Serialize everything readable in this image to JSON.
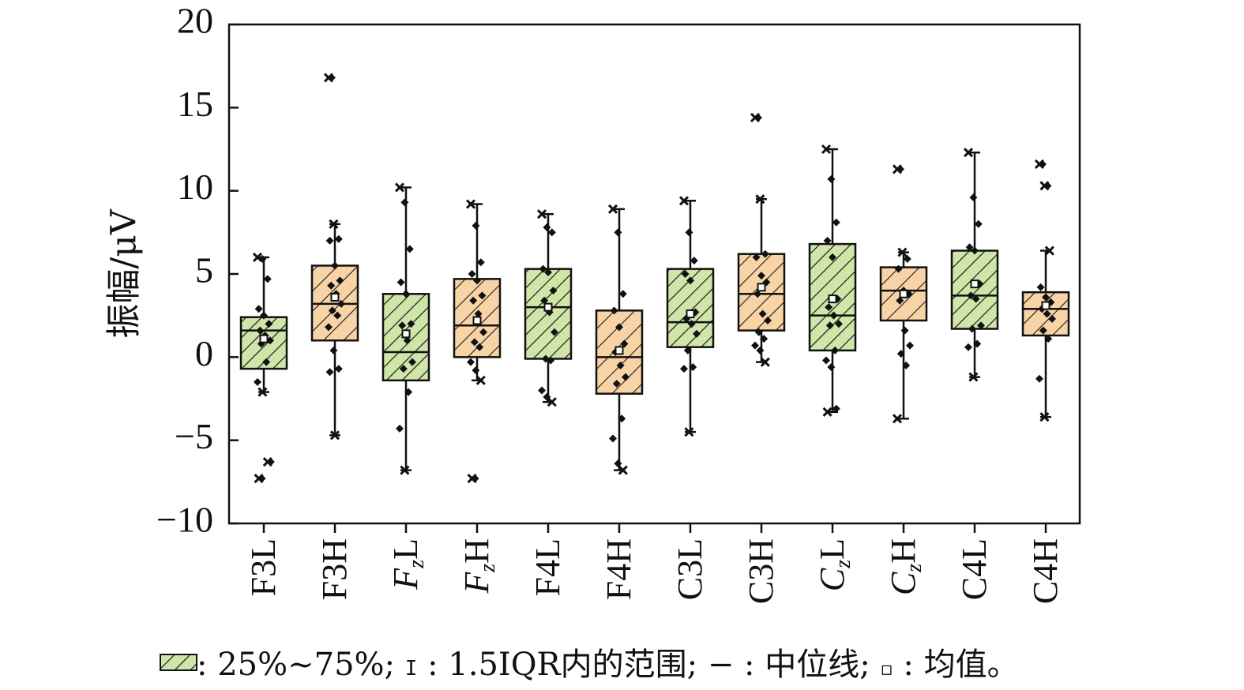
{
  "chart_data": {
    "type": "box",
    "title": "",
    "xlabel": "",
    "ylabel": "振幅/μV",
    "ylim": [
      -10,
      20
    ],
    "yticks": [
      20,
      15,
      10,
      5,
      0,
      -5,
      -10
    ],
    "ytick_labels": [
      "20",
      "15",
      "10",
      "5",
      "0",
      "−5",
      "−10"
    ],
    "grid": false,
    "fill_colors": {
      "green": "#cfe6a8",
      "orange": "#f7d3a6"
    },
    "categories": [
      {
        "label": "F3L",
        "base": "F",
        "sub": "",
        "tail": "3L",
        "italic": false,
        "fill": "green",
        "q1": -0.7,
        "median": 1.6,
        "q3": 2.4,
        "mean": 1.1,
        "whisker_low": -2.1,
        "whisker_high": 6.0,
        "outliers": [
          -6.3,
          -7.3
        ],
        "points": [
          6.0,
          5.9,
          4.7,
          2.9,
          2.5,
          2.0,
          1.6,
          1.3,
          1.0,
          0.8,
          -0.3,
          -1.5,
          -2.1,
          -6.3,
          -7.3
        ]
      },
      {
        "label": "F3H",
        "base": "F",
        "sub": "",
        "tail": "3H",
        "italic": false,
        "fill": "orange",
        "q1": 1.0,
        "median": 3.2,
        "q3": 5.5,
        "mean": 3.6,
        "whisker_low": -4.7,
        "whisker_high": 8.0,
        "outliers": [
          16.8
        ],
        "points": [
          16.8,
          8.0,
          7.1,
          7.0,
          5.5,
          4.6,
          4.3,
          3.8,
          3.2,
          2.8,
          2.5,
          1.8,
          0.4,
          -0.7,
          -0.9,
          -4.7
        ]
      },
      {
        "label": "FzL",
        "base": "F",
        "sub": "z",
        "tail": "L",
        "italic": true,
        "fill": "green",
        "q1": -1.4,
        "median": 0.3,
        "q3": 3.8,
        "mean": 1.4,
        "whisker_low": -6.8,
        "whisker_high": 10.2,
        "outliers": [],
        "points": [
          10.2,
          9.3,
          6.5,
          4.5,
          3.8,
          2.0,
          1.9,
          1.0,
          -0.3,
          -0.7,
          -2.1,
          -4.3,
          -6.8
        ]
      },
      {
        "label": "FzH",
        "base": "F",
        "sub": "z",
        "tail": "H",
        "italic": true,
        "fill": "orange",
        "q1": 0.0,
        "median": 1.9,
        "q3": 4.7,
        "mean": 2.2,
        "whisker_low": -1.4,
        "whisker_high": 9.2,
        "outliers": [
          -7.3
        ],
        "points": [
          9.2,
          7.9,
          5.7,
          5.0,
          4.6,
          3.7,
          3.4,
          2.6,
          1.5,
          0.9,
          0.6,
          -0.3,
          -0.8,
          -1.4,
          -7.3
        ]
      },
      {
        "label": "F4L",
        "base": "F",
        "sub": "",
        "tail": "4L",
        "italic": false,
        "fill": "green",
        "q1": -0.1,
        "median": 3.0,
        "q3": 5.3,
        "mean": 3.0,
        "whisker_low": -2.7,
        "whisker_high": 8.6,
        "outliers": [],
        "points": [
          8.6,
          7.8,
          7.5,
          5.3,
          5.1,
          4.0,
          3.4,
          2.7,
          1.5,
          -0.1,
          -0.2,
          -2.0,
          -2.4,
          -2.7
        ]
      },
      {
        "label": "F4H",
        "base": "F",
        "sub": "",
        "tail": "4H",
        "italic": false,
        "fill": "orange",
        "q1": -2.2,
        "median": 0.0,
        "q3": 2.8,
        "mean": 0.4,
        "whisker_low": -6.8,
        "whisker_high": 8.9,
        "outliers": [],
        "points": [
          8.9,
          7.5,
          3.8,
          2.8,
          1.8,
          0.8,
          0.3,
          -0.5,
          -1.2,
          -1.6,
          -3.7,
          -4.9,
          -6.4,
          -6.8
        ]
      },
      {
        "label": "C3L",
        "base": "C",
        "sub": "",
        "tail": "3L",
        "italic": false,
        "fill": "green",
        "q1": 0.6,
        "median": 2.1,
        "q3": 5.3,
        "mean": 2.6,
        "whisker_low": -4.5,
        "whisker_high": 9.4,
        "outliers": [],
        "points": [
          9.4,
          7.5,
          5.8,
          5.0,
          4.6,
          2.7,
          2.3,
          2.0,
          1.4,
          0.4,
          -0.6,
          -0.7,
          -4.5
        ]
      },
      {
        "label": "C3H",
        "base": "C",
        "sub": "",
        "tail": "3H",
        "italic": false,
        "fill": "orange",
        "q1": 1.6,
        "median": 3.8,
        "q3": 6.2,
        "mean": 4.2,
        "whisker_low": -0.3,
        "whisker_high": 9.5,
        "outliers": [
          14.4
        ],
        "points": [
          14.4,
          9.5,
          6.2,
          6.0,
          4.9,
          4.5,
          3.8,
          2.6,
          2.2,
          1.5,
          1.1,
          0.7,
          0.4,
          -0.3
        ]
      },
      {
        "label": "CzL",
        "base": "C",
        "sub": "z",
        "tail": "L",
        "italic": true,
        "fill": "green",
        "q1": 0.4,
        "median": 2.5,
        "q3": 6.8,
        "mean": 3.5,
        "whisker_low": -3.3,
        "whisker_high": 12.5,
        "outliers": [],
        "points": [
          12.5,
          10.7,
          8.1,
          7.0,
          6.0,
          3.5,
          3.0,
          2.5,
          2.0,
          1.9,
          0.4,
          -0.2,
          -0.6,
          -3.1,
          -3.3
        ]
      },
      {
        "label": "CzH",
        "base": "C",
        "sub": "z",
        "tail": "H",
        "italic": true,
        "fill": "orange",
        "q1": 2.2,
        "median": 4.0,
        "q3": 5.4,
        "mean": 3.8,
        "whisker_low": -3.7,
        "whisker_high": 6.3,
        "outliers": [
          11.3
        ],
        "points": [
          11.3,
          6.3,
          5.9,
          5.3,
          4.0,
          3.8,
          3.4,
          1.6,
          0.7,
          0.2,
          -0.5,
          -3.7
        ]
      },
      {
        "label": "C4L",
        "base": "C",
        "sub": "",
        "tail": "4L",
        "italic": false,
        "fill": "green",
        "q1": 1.7,
        "median": 3.7,
        "q3": 6.4,
        "mean": 4.4,
        "whisker_low": -1.2,
        "whisker_high": 12.3,
        "outliers": [],
        "points": [
          12.3,
          9.6,
          8.0,
          6.6,
          6.4,
          4.4,
          3.7,
          3.5,
          1.9,
          1.7,
          0.8,
          0.6,
          -1.2
        ]
      },
      {
        "label": "C4H",
        "base": "C",
        "sub": "",
        "tail": "4H",
        "italic": false,
        "fill": "orange",
        "q1": 1.3,
        "median": 2.9,
        "q3": 3.9,
        "mean": 3.1,
        "whisker_low": -3.6,
        "whisker_high": 6.4,
        "outliers": [
          11.6,
          10.3
        ],
        "points": [
          11.6,
          10.3,
          6.4,
          4.2,
          3.6,
          3.3,
          2.9,
          2.6,
          2.3,
          1.6,
          1.1,
          -1.3,
          -3.6
        ]
      }
    ],
    "legend": {
      "placement": "bottom",
      "box_label": ": 25%~75%; ",
      "whisker_symbol": "I",
      "whisker_label": ": 1.5IQR内的范围; ",
      "median_symbol": "−",
      "median_label": ": 中位线; ",
      "mean_label": ": 均值。"
    }
  }
}
